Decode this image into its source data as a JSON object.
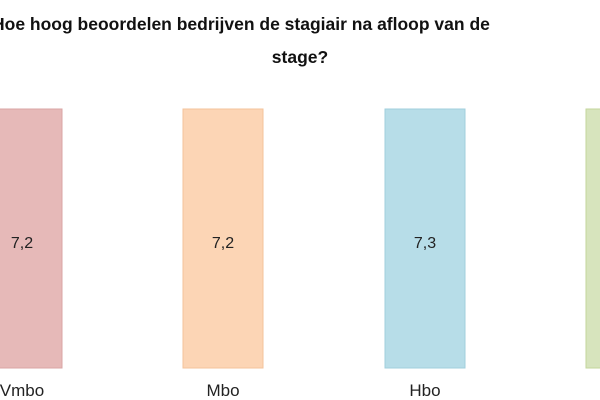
{
  "chart_data": {
    "type": "bar",
    "title_lines": [
      "Hoe hoog beoordelen bedrijven de stagiair na afloop van de",
      "stage?"
    ],
    "categories": [
      "Vmbo",
      "Mbo",
      "Hbo",
      ""
    ],
    "values": [
      7.2,
      7.2,
      7.3,
      null
    ],
    "value_labels": [
      "7,2",
      "7,2",
      "7,3",
      ""
    ],
    "bar_colors": [
      "#e6b9b8",
      "#fcd5b5",
      "#b7dde8",
      "#d7e4bd"
    ],
    "bar_edge_colors": [
      "#d9a5a4",
      "#f3c39b",
      "#a1cfdd",
      "#c3d69b"
    ],
    "xlabel": "",
    "ylabel": "",
    "grid": false,
    "legend": "none"
  }
}
